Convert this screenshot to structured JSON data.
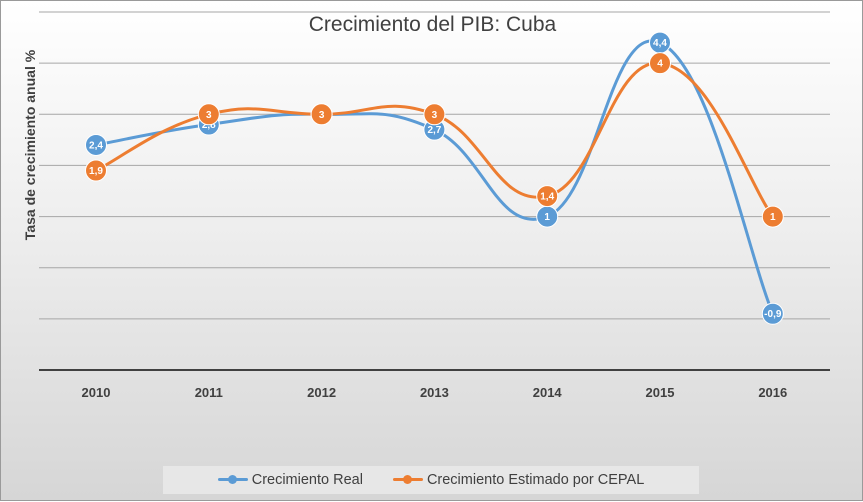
{
  "chart_data": {
    "type": "line",
    "title": "Crecimiento del PIB: Cuba",
    "xlabel": "",
    "ylabel": "Tasa de crecimiento anual %",
    "categories": [
      "2010",
      "2011",
      "2012",
      "2013",
      "2014",
      "2015",
      "2016"
    ],
    "series": [
      {
        "name": "Crecimiento Real",
        "values": [
          2.4,
          2.8,
          3,
          2.7,
          1,
          4.4,
          -0.9
        ],
        "labels": [
          "2,4",
          "2,8",
          "3",
          "2,7",
          "1",
          "4,4",
          "-0,9"
        ],
        "color": "#5b9bd5"
      },
      {
        "name": "Crecimiento Estimado por CEPAL",
        "values": [
          1.9,
          3,
          3,
          3,
          1.4,
          4,
          1
        ],
        "labels": [
          "1,9",
          "3",
          "3",
          "3",
          "1,4",
          "4",
          "1"
        ],
        "color": "#ed7d31"
      }
    ],
    "ylim": [
      -2,
      5
    ],
    "grid": true,
    "smooth": true,
    "legend_position": "bottom",
    "axis_color": "#404040",
    "grid_color": "#a6a6a6"
  }
}
